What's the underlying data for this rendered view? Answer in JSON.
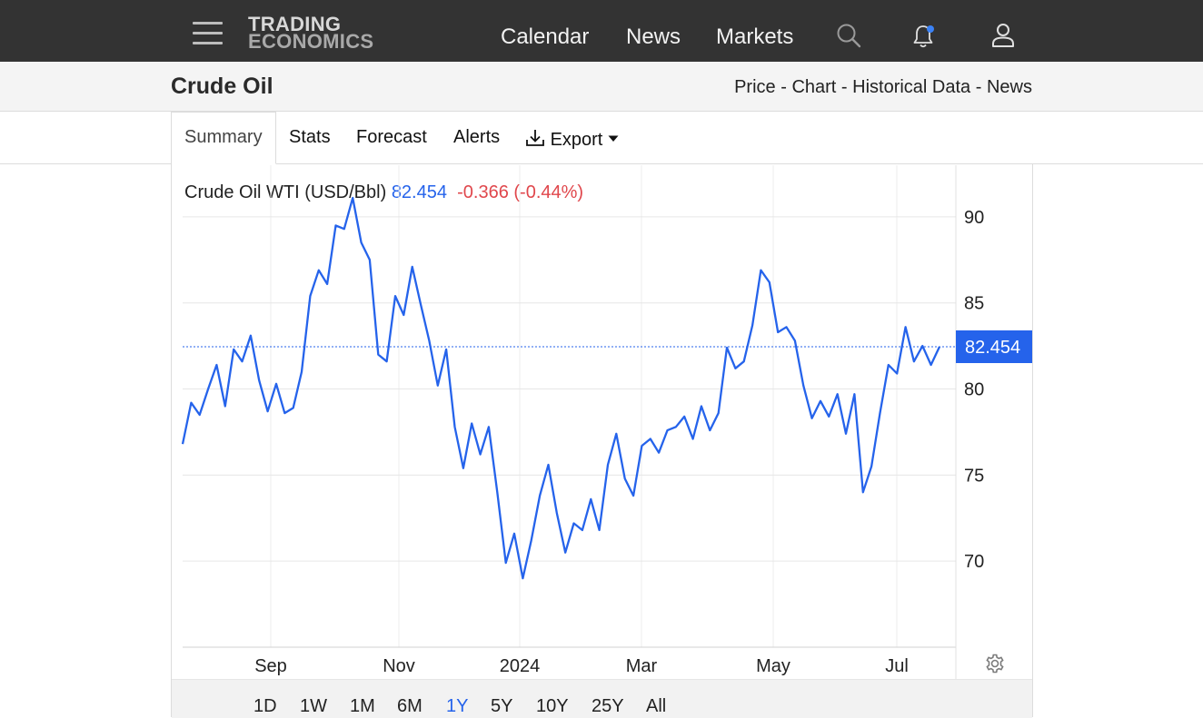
{
  "nav": {
    "logo_line1": "TRADING",
    "logo_line2": "ECONOMICS",
    "links": [
      "Calendar",
      "News",
      "Markets"
    ]
  },
  "page": {
    "title": "Crude Oil",
    "breadcrumbs": [
      "Price",
      "Chart",
      "Historical Data",
      "News"
    ],
    "separator": "-"
  },
  "tabs": [
    "Summary",
    "Stats",
    "Forecast",
    "Alerts",
    "Export"
  ],
  "chart_header": {
    "name": "Crude Oil WTI (USD/Bbl)",
    "price": "82.454",
    "change": "-0.366",
    "change_pct": "(-0.44%)"
  },
  "ranges": [
    "1D",
    "1W",
    "1M",
    "6M",
    "1Y",
    "5Y",
    "10Y",
    "25Y",
    "All"
  ],
  "selected_range": "1Y",
  "colors": {
    "line": "#2563eb",
    "negative": "#e0474c",
    "topbar": "#333333"
  },
  "chart_data": {
    "type": "line",
    "title": "Crude Oil WTI (USD/Bbl)",
    "x_tick_labels": [
      "Sep",
      "Nov",
      "2024",
      "Mar",
      "May",
      "Jul"
    ],
    "y_tick_labels": [
      "90",
      "85",
      "80",
      "75",
      "70"
    ],
    "ylim": [
      65,
      93
    ],
    "last_value_label": "82.454",
    "grid": true,
    "series": [
      {
        "values": [
          76.8,
          79.2,
          78.5,
          80.0,
          81.4,
          79.0,
          82.3,
          81.6,
          83.1,
          80.5,
          78.7,
          80.3,
          78.6,
          78.9,
          81.0,
          85.4,
          86.9,
          86.1,
          89.5,
          89.3,
          91.1,
          88.5,
          87.5,
          82.0,
          81.6,
          85.4,
          84.3,
          87.1,
          84.9,
          82.8,
          80.2,
          82.3,
          77.8,
          75.4,
          78.0,
          76.2,
          77.8,
          74.0,
          69.9,
          71.6,
          69.0,
          71.2,
          73.8,
          75.6,
          72.8,
          70.5,
          72.2,
          71.8,
          73.6,
          71.8,
          75.6,
          77.4,
          74.8,
          73.8,
          76.7,
          77.1,
          76.3,
          77.6,
          77.8,
          78.4,
          77.1,
          79.0,
          77.6,
          78.6,
          82.4,
          81.2,
          81.6,
          83.7,
          86.9,
          86.2,
          83.3,
          83.6,
          82.8,
          80.2,
          78.3,
          79.3,
          78.4,
          79.7,
          77.4,
          79.7,
          74.0,
          75.5,
          78.6,
          81.4,
          80.9,
          83.6,
          81.6,
          82.5,
          81.4,
          82.454
        ]
      }
    ]
  }
}
